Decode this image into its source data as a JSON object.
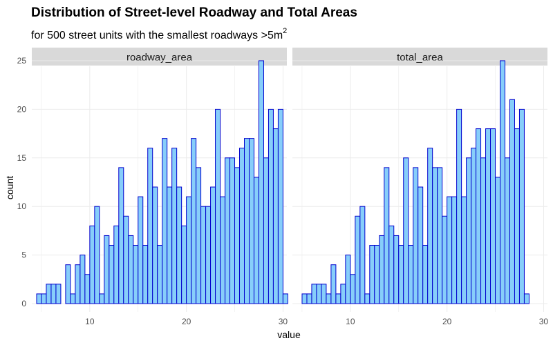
{
  "chart_data": {
    "type": "bar",
    "title": "Distribution of Street-level Roadway and Total Areas",
    "subtitle": "for 500 street units with the smallest roadways >5m",
    "subtitle_sup": "2",
    "xlabel": "value",
    "ylabel": "count",
    "xlim": [
      4.0,
      30.4
    ],
    "ylim": [
      0,
      25
    ],
    "x_ticks": [
      10,
      20,
      30
    ],
    "y_ticks": [
      0,
      5,
      10,
      15,
      20,
      25
    ],
    "bin_width": 0.5,
    "colors": {
      "bar_fill": "#87CEFA",
      "bar_stroke": "#0000CD",
      "strip": "#D9D9D9",
      "grid": "#EBEBEB"
    },
    "panels": [
      {
        "name": "roadway_area",
        "bins_start": 4.5,
        "values": [
          1,
          1,
          2,
          2,
          2,
          0,
          4,
          1,
          4,
          5,
          3,
          8,
          10,
          1,
          7,
          6,
          8,
          14,
          9,
          7,
          6,
          11,
          6,
          16,
          12,
          6,
          17,
          12,
          16,
          12,
          8,
          11,
          17,
          14,
          10,
          10,
          12,
          20,
          11,
          15,
          15,
          14,
          16,
          17,
          17,
          13,
          25,
          15,
          20,
          18,
          20,
          1
        ]
      },
      {
        "name": "total_area",
        "bins_start": 4.5,
        "values": [
          0,
          1,
          1,
          2,
          2,
          2,
          1,
          4,
          1,
          2,
          5,
          3,
          9,
          10,
          1,
          6,
          6,
          7,
          14,
          8,
          7,
          6,
          15,
          6,
          14,
          12,
          6,
          16,
          14,
          14,
          9,
          11,
          11,
          20,
          11,
          15,
          16,
          18,
          15,
          18,
          18,
          13,
          25,
          15,
          21,
          18,
          20,
          1
        ]
      }
    ]
  }
}
